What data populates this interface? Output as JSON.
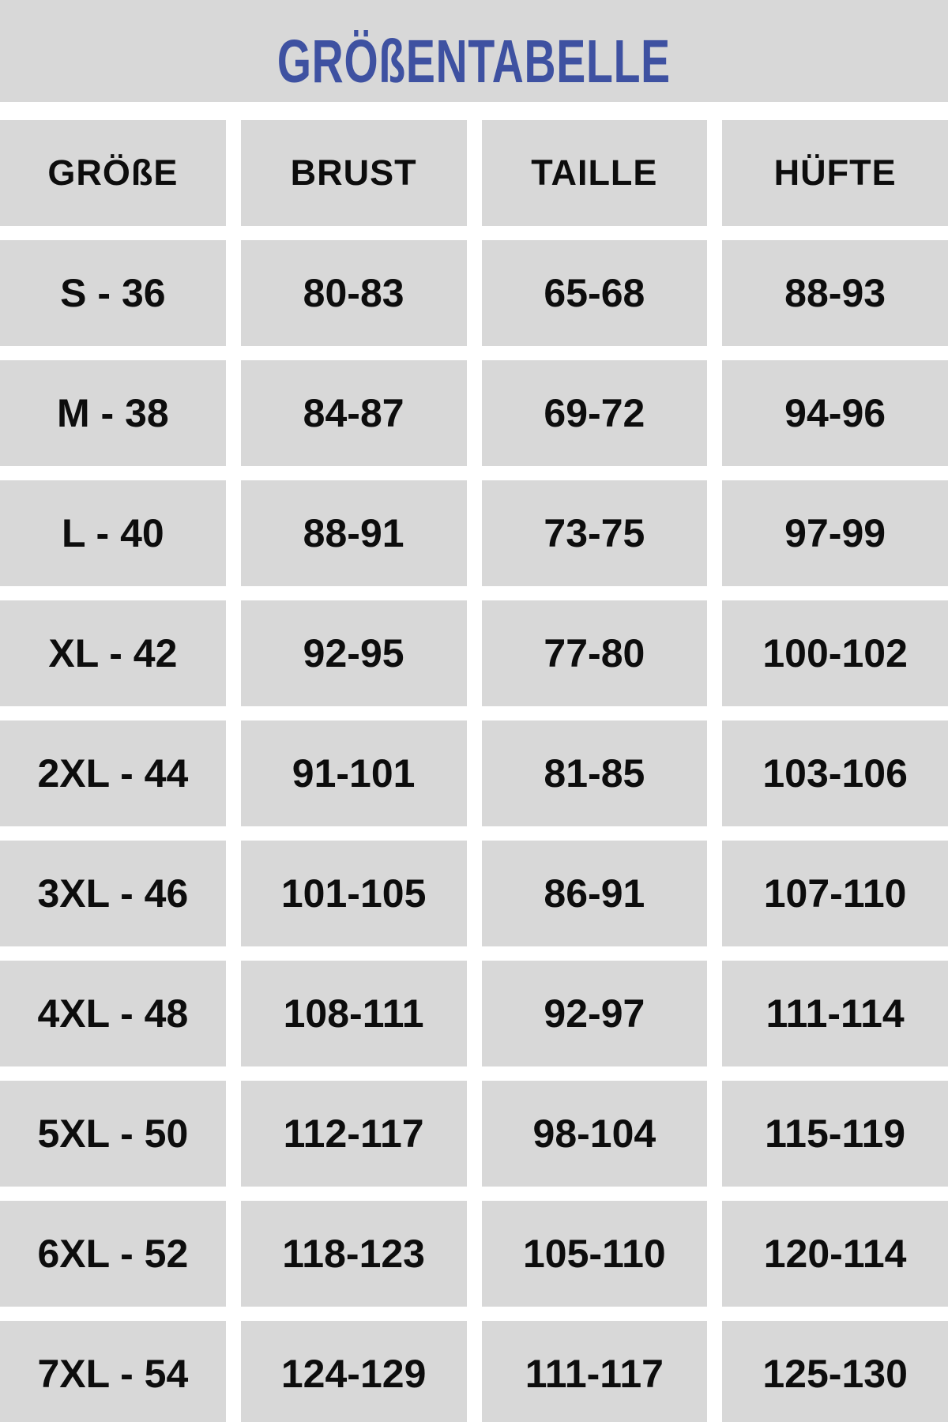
{
  "title": "GRÖßENTABELLE",
  "table": {
    "headers": [
      "GRÖßE",
      "BRUST",
      "TAILLE",
      "HÜFTE"
    ],
    "rows": [
      [
        "S - 36",
        "80-83",
        "65-68",
        "88-93"
      ],
      [
        "M - 38",
        "84-87",
        "69-72",
        "94-96"
      ],
      [
        "L - 40",
        "88-91",
        "73-75",
        "97-99"
      ],
      [
        "XL - 42",
        "92-95",
        "77-80",
        "100-102"
      ],
      [
        "2XL - 44",
        "91-101",
        "81-85",
        "103-106"
      ],
      [
        "3XL - 46",
        "101-105",
        "86-91",
        "107-110"
      ],
      [
        "4XL - 48",
        "108-111",
        "92-97",
        "111-114"
      ],
      [
        "5XL - 50",
        "112-117",
        "98-104",
        "115-119"
      ],
      [
        "6XL - 52",
        "118-123",
        "105-110",
        "120-114"
      ],
      [
        "7XL - 54",
        "124-129",
        "111-117",
        "125-130"
      ]
    ]
  },
  "colors": {
    "accent": "#3e51a1",
    "cell-bg": "#d8d8d8",
    "page-bg": "#ffffff",
    "text": "#0d0d0d"
  }
}
